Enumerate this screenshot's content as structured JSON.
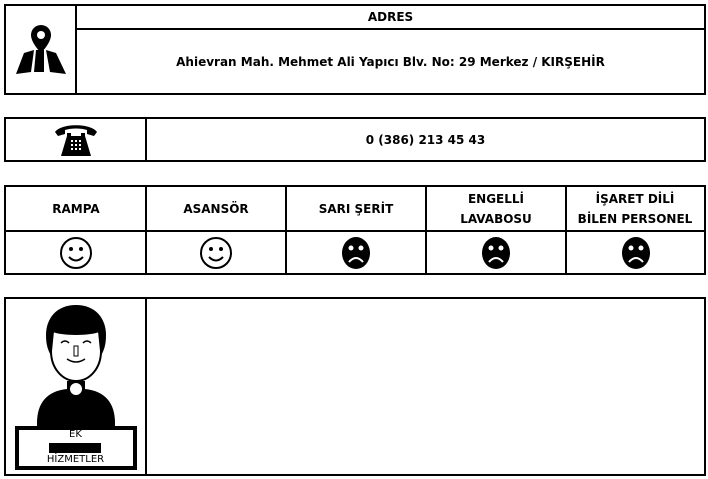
{
  "address": {
    "title": "ADRES",
    "value": "Ahievran Mah. Mehmet Ali Yapıcı Blv. No: 29 Merkez / KIRŞEHİR",
    "icon": "map-pin-icon"
  },
  "phone": {
    "value": "0 (386) 213 45 43",
    "icon": "telephone-icon"
  },
  "accessibility": {
    "columns": [
      {
        "label": "RAMPA",
        "status": "happy"
      },
      {
        "label": "ASANSÖR",
        "status": "happy"
      },
      {
        "label": "SARI ŞERİT",
        "status": "sad"
      },
      {
        "label_line1": "ENGELLİ",
        "label_line2": "LAVABOSU",
        "status": "sad"
      },
      {
        "label_line1": "İŞARET DİLİ",
        "label_line2": "BİLEN PERSONEL",
        "status": "sad"
      }
    ]
  },
  "extra_services": {
    "label_line1": "EK",
    "label_line2": "HİZMETLER",
    "value": ""
  }
}
